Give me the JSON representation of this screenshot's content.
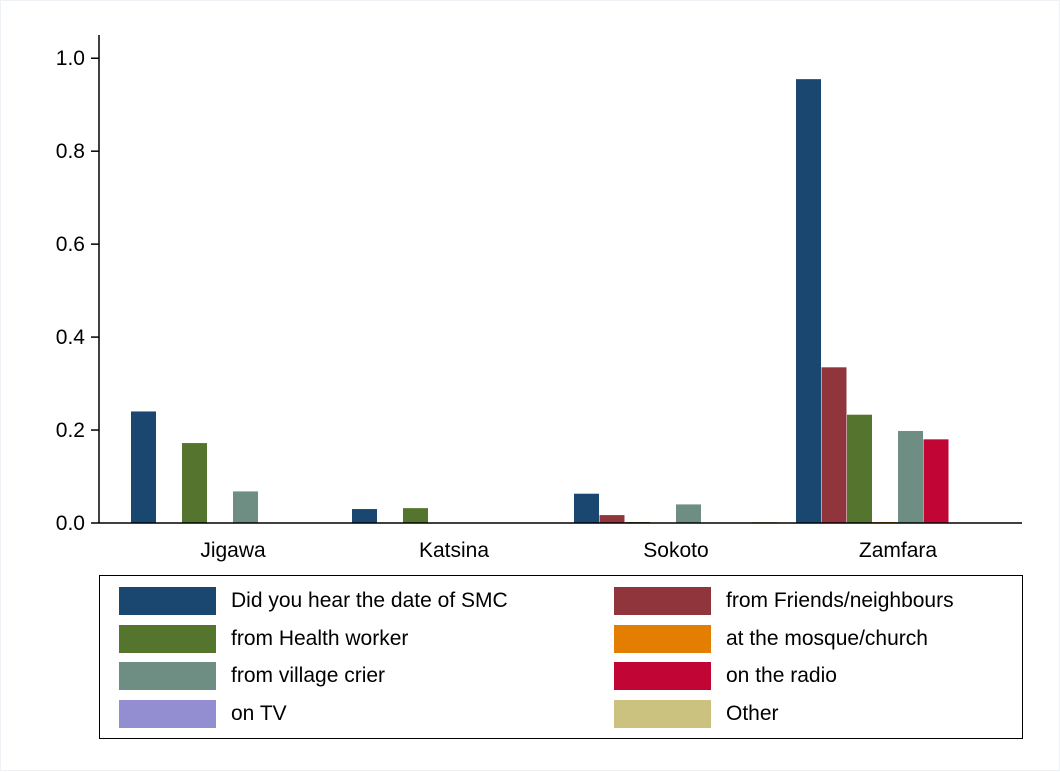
{
  "chart_data": {
    "type": "bar",
    "title": "",
    "xlabel": "",
    "ylabel": "",
    "ylim": [
      0,
      1.05
    ],
    "yticks": [
      "0.0",
      "0.2",
      "0.4",
      "0.6",
      "0.8",
      "1.0"
    ],
    "grid": false,
    "legend_position": "bottom",
    "categories": [
      "Jigawa",
      "Katsina",
      "Sokoto",
      "Zamfara"
    ],
    "series": [
      {
        "name": "Did you hear the date of SMC",
        "color": "#1a476f",
        "values": [
          0.24,
          0.03,
          0.063,
          0.955
        ]
      },
      {
        "name": "from Friends/neighbours",
        "color": "#90353b",
        "values": [
          0,
          0,
          0.017,
          0.335
        ]
      },
      {
        "name": "from Health  worker",
        "color": "#55752f",
        "values": [
          0.172,
          0.032,
          0.002,
          0.233
        ]
      },
      {
        "name": "at the mosque/church",
        "color": "#e37e00",
        "values": [
          0,
          0,
          0,
          0.002
        ]
      },
      {
        "name": "from village crier",
        "color": "#6e8e84",
        "values": [
          0.068,
          0,
          0.04,
          0.198
        ]
      },
      {
        "name": "on the radio",
        "color": "#c10534",
        "values": [
          0,
          0,
          0,
          0.18
        ]
      },
      {
        "name": "on TV",
        "color": "#938dd2",
        "values": [
          0,
          0,
          0,
          0
        ]
      },
      {
        "name": "Other",
        "color": "#cac27e",
        "values": [
          0,
          0,
          0.002,
          0
        ]
      }
    ]
  }
}
